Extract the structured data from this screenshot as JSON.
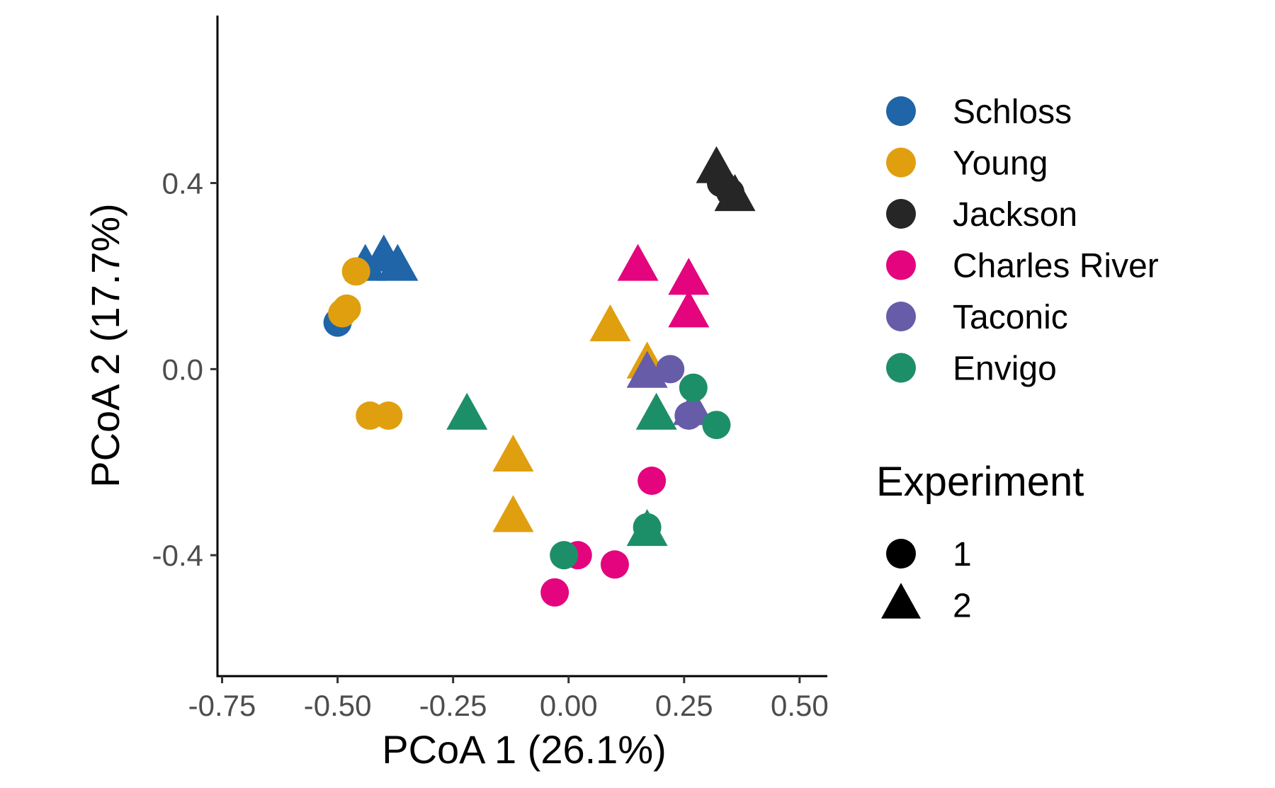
{
  "chart_data": {
    "type": "scatter",
    "xlabel": "PCoA 1 (26.1%)",
    "ylabel": "PCoA 2 (17.7%)",
    "xlim": [
      -0.76,
      0.56
    ],
    "ylim": [
      -0.66,
      0.76
    ],
    "x_ticks": [
      -0.75,
      -0.5,
      -0.25,
      0.0,
      0.25,
      0.5
    ],
    "x_tick_labels": [
      "-0.75",
      "-0.50",
      "-0.25",
      "0.00",
      "0.25",
      "0.50"
    ],
    "y_ticks": [
      -0.4,
      0.0,
      0.4
    ],
    "y_tick_labels": [
      "-0.4",
      "0.0",
      "0.4"
    ],
    "grid": false,
    "legend_placement": "right",
    "color_legend": [
      {
        "name": "Schloss",
        "color": "#1f65a8"
      },
      {
        "name": "Young",
        "color": "#e09f0f"
      },
      {
        "name": "Jackson",
        "color": "#262626"
      },
      {
        "name": "Charles River",
        "color": "#e3047e"
      },
      {
        "name": "Taconic",
        "color": "#665ca8"
      },
      {
        "name": "Envigo",
        "color": "#1d8f68"
      }
    ],
    "shape_legend": {
      "title": "Experiment",
      "items": [
        {
          "label": "1",
          "shape": "circle"
        },
        {
          "label": "2",
          "shape": "triangle"
        }
      ]
    },
    "points": [
      {
        "group": "Schloss",
        "experiment": "1",
        "x": -0.5,
        "y": 0.1
      },
      {
        "group": "Schloss",
        "experiment": "2",
        "x": -0.44,
        "y": 0.22
      },
      {
        "group": "Schloss",
        "experiment": "2",
        "x": -0.4,
        "y": 0.24
      },
      {
        "group": "Schloss",
        "experiment": "2",
        "x": -0.37,
        "y": 0.22
      },
      {
        "group": "Young",
        "experiment": "1",
        "x": -0.46,
        "y": 0.21
      },
      {
        "group": "Young",
        "experiment": "1",
        "x": -0.48,
        "y": 0.13
      },
      {
        "group": "Young",
        "experiment": "1",
        "x": -0.49,
        "y": 0.12
      },
      {
        "group": "Young",
        "experiment": "1",
        "x": -0.43,
        "y": -0.1
      },
      {
        "group": "Young",
        "experiment": "1",
        "x": -0.39,
        "y": -0.1
      },
      {
        "group": "Young",
        "experiment": "2",
        "x": 0.09,
        "y": 0.09
      },
      {
        "group": "Young",
        "experiment": "2",
        "x": 0.17,
        "y": 0.01
      },
      {
        "group": "Young",
        "experiment": "2",
        "x": -0.12,
        "y": -0.19
      },
      {
        "group": "Young",
        "experiment": "2",
        "x": -0.12,
        "y": -0.32
      },
      {
        "group": "Jackson",
        "experiment": "2",
        "x": 0.32,
        "y": 0.43
      },
      {
        "group": "Jackson",
        "experiment": "2",
        "x": 0.36,
        "y": 0.37
      },
      {
        "group": "Jackson",
        "experiment": "1",
        "x": 0.33,
        "y": 0.4
      },
      {
        "group": "Jackson",
        "experiment": "1",
        "x": 0.35,
        "y": 0.38
      },
      {
        "group": "Charles River",
        "experiment": "2",
        "x": 0.15,
        "y": 0.22
      },
      {
        "group": "Charles River",
        "experiment": "2",
        "x": 0.26,
        "y": 0.19
      },
      {
        "group": "Charles River",
        "experiment": "2",
        "x": 0.26,
        "y": 0.12
      },
      {
        "group": "Charles River",
        "experiment": "1",
        "x": 0.18,
        "y": -0.24
      },
      {
        "group": "Charles River",
        "experiment": "1",
        "x": 0.02,
        "y": -0.4
      },
      {
        "group": "Charles River",
        "experiment": "1",
        "x": 0.1,
        "y": -0.42
      },
      {
        "group": "Charles River",
        "experiment": "1",
        "x": -0.03,
        "y": -0.48
      },
      {
        "group": "Taconic",
        "experiment": "2",
        "x": 0.17,
        "y": -0.01
      },
      {
        "group": "Taconic",
        "experiment": "2",
        "x": 0.27,
        "y": -0.09
      },
      {
        "group": "Taconic",
        "experiment": "1",
        "x": 0.22,
        "y": 0.0
      },
      {
        "group": "Taconic",
        "experiment": "1",
        "x": 0.26,
        "y": -0.1
      },
      {
        "group": "Envigo",
        "experiment": "2",
        "x": -0.22,
        "y": -0.1
      },
      {
        "group": "Envigo",
        "experiment": "2",
        "x": 0.19,
        "y": -0.1
      },
      {
        "group": "Envigo",
        "experiment": "2",
        "x": 0.17,
        "y": -0.35
      },
      {
        "group": "Envigo",
        "experiment": "1",
        "x": 0.27,
        "y": -0.04
      },
      {
        "group": "Envigo",
        "experiment": "1",
        "x": 0.32,
        "y": -0.12
      },
      {
        "group": "Envigo",
        "experiment": "1",
        "x": 0.17,
        "y": -0.34
      },
      {
        "group": "Envigo",
        "experiment": "1",
        "x": -0.01,
        "y": -0.4
      }
    ]
  }
}
